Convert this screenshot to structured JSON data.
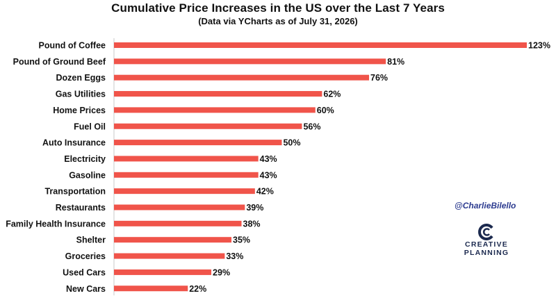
{
  "chart_data": {
    "type": "bar",
    "orientation": "horizontal",
    "title": "Cumulative Price Increases in the US over the Last 7 Years",
    "subtitle": "(Data via YCharts as of July 31, 2026)",
    "categories": [
      "Pound of Coffee",
      "Pound of Ground Beef",
      "Dozen Eggs",
      "Gas Utilities",
      "Home Prices",
      "Fuel Oil",
      "Auto Insurance",
      "Electricity",
      "Gasoline",
      "Transportation",
      "Restaurants",
      "Family Health Insurance",
      "Shelter",
      "Groceries",
      "Used Cars",
      "New Cars"
    ],
    "values": [
      123,
      81,
      76,
      62,
      60,
      56,
      50,
      43,
      43,
      42,
      39,
      38,
      35,
      33,
      29,
      22
    ],
    "value_labels": [
      "123%",
      "81%",
      "76%",
      "62%",
      "60%",
      "56%",
      "50%",
      "43%",
      "43%",
      "42%",
      "39%",
      "38%",
      "35%",
      "33%",
      "29%",
      "22%"
    ],
    "unit": "%",
    "xlim": [
      0,
      123
    ],
    "grid": false,
    "bar_color": "#f0544a",
    "axis_color": "#c8c8c8"
  },
  "watermark": {
    "handle": "@CharlieBilello",
    "logo_line1": "CREATIVE",
    "logo_line2": "PLANNING",
    "logo_icon": "creative-planning-logo-icon",
    "logo_color": "#1c2a4f",
    "handle_color": "#2b3a8f"
  }
}
